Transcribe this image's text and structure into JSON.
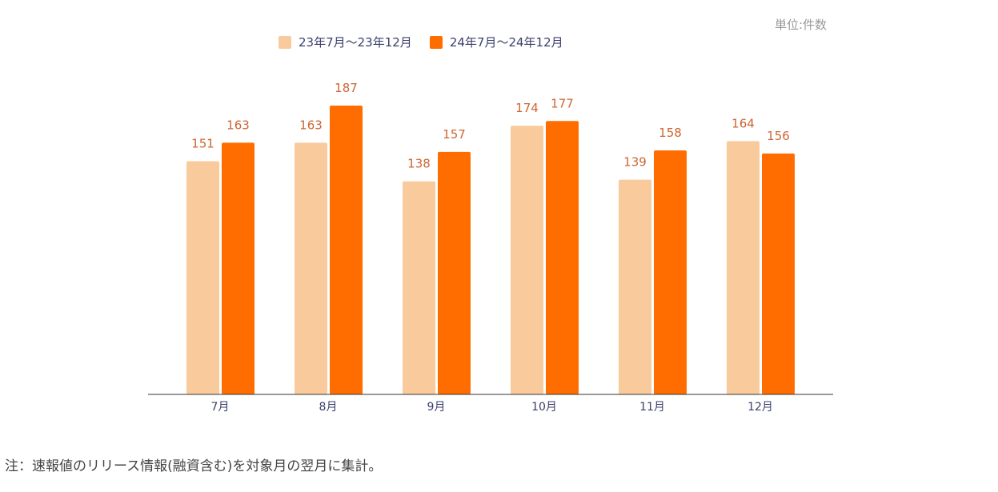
{
  "chart_data": {
    "type": "bar",
    "unit_label": "単位:件数",
    "categories": [
      "7月",
      "8月",
      "9月",
      "10月",
      "11月",
      "12月"
    ],
    "series": [
      {
        "name": "23年7月～23年12月",
        "color": "#F9CB9C",
        "values": [
          151,
          163,
          138,
          174,
          139,
          164
        ]
      },
      {
        "name": "24年7月～24年12月",
        "color": "#FF6D00",
        "values": [
          163,
          187,
          157,
          177,
          158,
          156
        ]
      }
    ],
    "data_label_color": "#CC6633",
    "ylim": [
      0,
      187
    ],
    "grid": false,
    "legend_position": "top"
  },
  "note": "注：速報値のリリース情報(融資含む)を対象月の翌月に集計。"
}
